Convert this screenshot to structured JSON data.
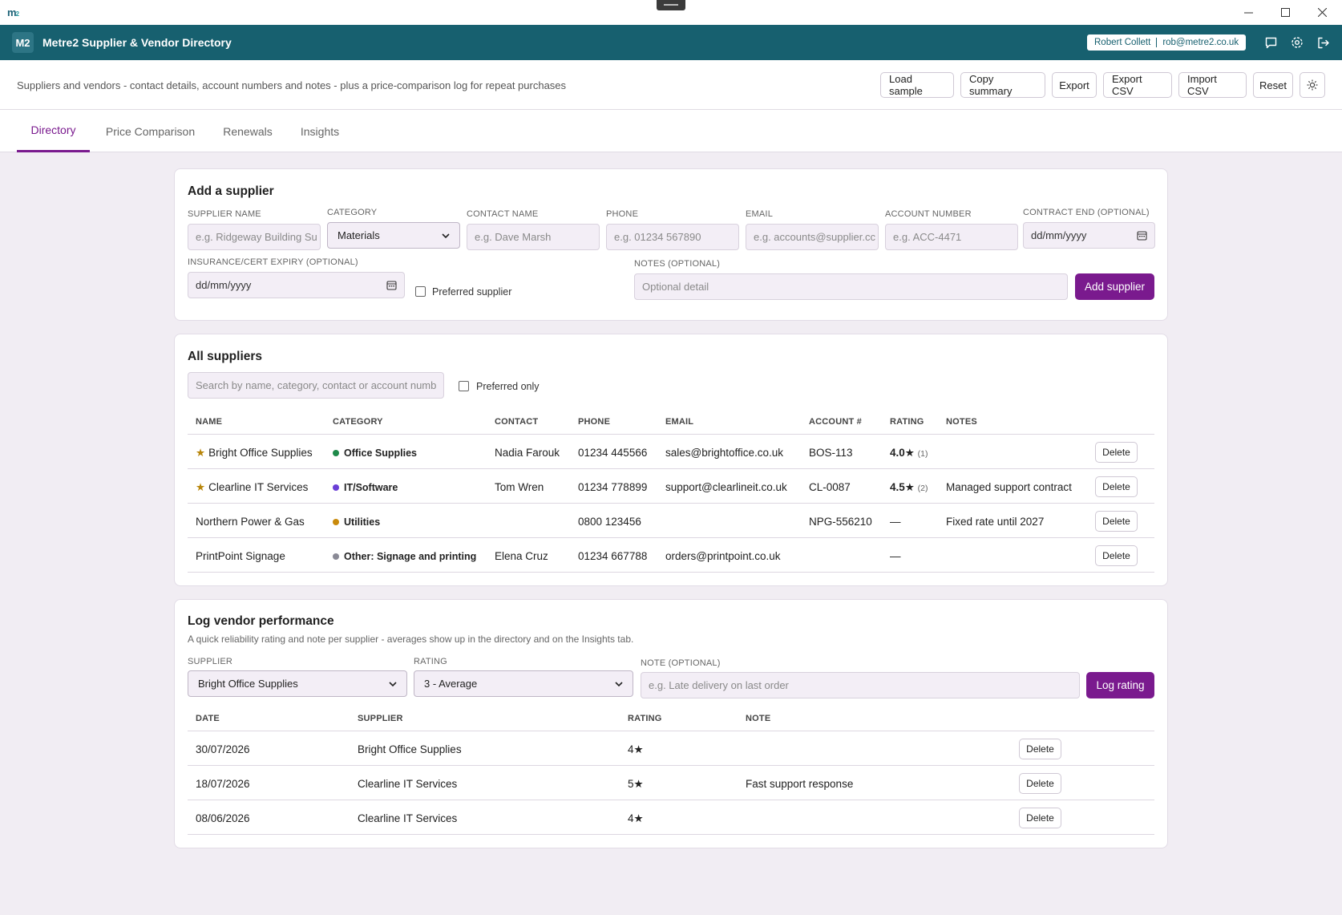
{
  "os": {
    "logo_main": "m",
    "logo_sub": "2"
  },
  "header": {
    "badge": "M2",
    "title": "Metre2 Supplier & Vendor Directory",
    "user_name": "Robert Collett",
    "user_email": "rob@metre2.co.uk"
  },
  "toolbar": {
    "description": "Suppliers and vendors - contact details, account numbers and notes - plus a price-comparison log for repeat purchases",
    "load_sample": "Load sample",
    "copy_summary": "Copy summary",
    "export": "Export",
    "export_csv": "Export CSV",
    "import_csv": "Import CSV",
    "reset": "Reset"
  },
  "tabs": [
    "Directory",
    "Price Comparison",
    "Renewals",
    "Insights"
  ],
  "add_form": {
    "title": "Add a supplier",
    "supplier_name_label": "SUPPLIER NAME",
    "supplier_name_ph": "e.g. Ridgeway Building Su",
    "category_label": "CATEGORY",
    "category_value": "Materials",
    "contact_label": "CONTACT NAME",
    "contact_ph": "e.g. Dave Marsh",
    "phone_label": "PHONE",
    "phone_ph": "e.g. 01234 567890",
    "email_label": "EMAIL",
    "email_ph": "e.g. accounts@supplier.cc",
    "account_label": "ACCOUNT NUMBER",
    "account_ph": "e.g. ACC-4471",
    "contract_label": "CONTRACT END (OPTIONAL)",
    "contract_value": "dd/mm/yyyy",
    "insurance_label": "INSURANCE/CERT EXPIRY (OPTIONAL)",
    "insurance_value": "dd/mm/yyyy",
    "preferred_label": "Preferred supplier",
    "notes_label": "NOTES (OPTIONAL)",
    "notes_ph": "Optional detail",
    "submit": "Add supplier"
  },
  "suppliers": {
    "title": "All suppliers",
    "search_ph": "Search by name, category, contact or account numb",
    "preferred_only": "Preferred only",
    "columns": [
      "NAME",
      "CATEGORY",
      "CONTACT",
      "PHONE",
      "EMAIL",
      "ACCOUNT #",
      "RATING",
      "NOTES"
    ],
    "delete_label": "Delete",
    "rows": [
      {
        "star": "★",
        "name": "Bright Office Supplies",
        "category": "Office Supplies",
        "cat_color": "#1e8a4a",
        "contact": "Nadia Farouk",
        "phone": "01234 445566",
        "email": "sales@brightoffice.co.uk",
        "account": "BOS-113",
        "rating": "4.0★",
        "rating_count": "(1)",
        "notes": ""
      },
      {
        "star": "★",
        "name": "Clearline IT Services",
        "category": "IT/Software",
        "cat_color": "#6a3fd6",
        "contact": "Tom Wren",
        "phone": "01234 778899",
        "email": "support@clearlineit.co.uk",
        "account": "CL-0087",
        "rating": "4.5★",
        "rating_count": "(2)",
        "notes": "Managed support contract"
      },
      {
        "star": "",
        "name": "Northern Power & Gas",
        "category": "Utilities",
        "cat_color": "#c98a0c",
        "contact": "",
        "phone": "0800 123456",
        "email": "",
        "account": "NPG-556210",
        "rating": "—",
        "rating_count": "",
        "notes": "Fixed rate until 2027"
      },
      {
        "star": "",
        "name": "PrintPoint Signage",
        "category": "Other: Signage and printing",
        "cat_color": "#8a8a96",
        "contact": "Elena Cruz",
        "phone": "01234 667788",
        "email": "orders@printpoint.co.uk",
        "account": "",
        "rating": "—",
        "rating_count": "",
        "notes": ""
      }
    ]
  },
  "performance": {
    "title": "Log vendor performance",
    "subtitle": "A quick reliability rating and note per supplier - averages show up in the directory and on the Insights tab.",
    "supplier_label": "SUPPLIER",
    "supplier_value": "Bright Office Supplies",
    "rating_label": "RATING",
    "rating_value": "3 - Average",
    "note_label": "NOTE (OPTIONAL)",
    "note_ph": "e.g. Late delivery on last order",
    "submit": "Log rating",
    "columns": [
      "DATE",
      "SUPPLIER",
      "RATING",
      "NOTE"
    ],
    "delete_label": "Delete",
    "rows": [
      {
        "date": "30/07/2026",
        "supplier": "Bright Office Supplies",
        "rating": "4★",
        "note": ""
      },
      {
        "date": "18/07/2026",
        "supplier": "Clearline IT Services",
        "rating": "5★",
        "note": "Fast support response"
      },
      {
        "date": "08/06/2026",
        "supplier": "Clearline IT Services",
        "rating": "4★",
        "note": ""
      }
    ]
  },
  "colors": {
    "header": "#17606f",
    "accent": "#7a1a8e",
    "background": "#f1edf3"
  }
}
